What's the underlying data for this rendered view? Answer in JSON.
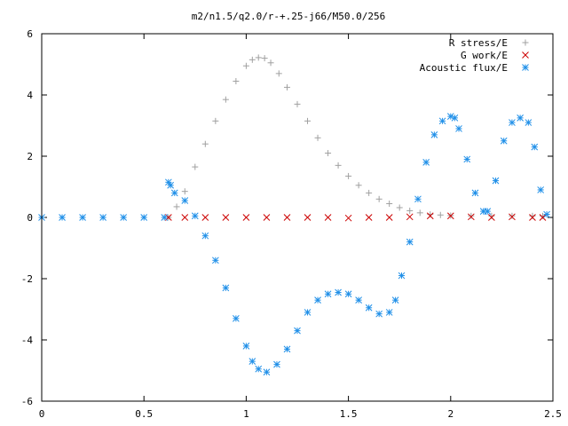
{
  "chart_data": {
    "type": "scatter",
    "title": "m2/n1.5/q2.0/r-+.25-j66/M50.0/256",
    "xlabel": "",
    "ylabel": "",
    "xlim": [
      0,
      2.5
    ],
    "ylim": [
      -6,
      6
    ],
    "grid": false,
    "legend_position": "top-right",
    "x_ticks": [
      "0",
      "0.5",
      "1",
      "1.5",
      "2",
      "2.5"
    ],
    "y_ticks": [
      "6",
      "4",
      "2",
      "0",
      "-2",
      "-4",
      "-6"
    ],
    "series": [
      {
        "name": "R stress/E",
        "marker": "+",
        "color": "#a0a0a0",
        "x": [
          0.62,
          0.66,
          0.7,
          0.75,
          0.8,
          0.85,
          0.9,
          0.95,
          1.0,
          1.03,
          1.06,
          1.09,
          1.12,
          1.16,
          1.2,
          1.25,
          1.3,
          1.35,
          1.4,
          1.45,
          1.5,
          1.55,
          1.6,
          1.65,
          1.7,
          1.75,
          1.8,
          1.85,
          1.9,
          1.95,
          2.0,
          2.1,
          2.2,
          2.3,
          2.4,
          2.45
        ],
        "y": [
          0.0,
          0.35,
          0.85,
          1.65,
          2.4,
          3.15,
          3.85,
          4.45,
          4.95,
          5.15,
          5.22,
          5.2,
          5.05,
          4.7,
          4.25,
          3.7,
          3.15,
          2.6,
          2.1,
          1.7,
          1.35,
          1.05,
          0.8,
          0.6,
          0.45,
          0.32,
          0.22,
          0.15,
          0.1,
          0.08,
          0.06,
          0.05,
          0.05,
          0.05,
          0.05,
          0.05
        ]
      },
      {
        "name": "G work/E",
        "marker": "x",
        "color": "#cc0000",
        "x": [
          0.62,
          0.7,
          0.8,
          0.9,
          1.0,
          1.1,
          1.2,
          1.3,
          1.4,
          1.5,
          1.6,
          1.7,
          1.8,
          1.9,
          2.0,
          2.1,
          2.2,
          2.3,
          2.4,
          2.45
        ],
        "y": [
          0.0,
          0.0,
          0.0,
          0.0,
          0.0,
          0.0,
          0.0,
          0.0,
          0.0,
          -0.02,
          0.0,
          0.0,
          0.02,
          0.05,
          0.05,
          0.02,
          0.0,
          0.02,
          0.0,
          0.0
        ]
      },
      {
        "name": "Acoustic flux/E",
        "marker": "*",
        "color": "#1f8fe8",
        "x": [
          0.0,
          0.1,
          0.2,
          0.3,
          0.4,
          0.5,
          0.6,
          0.62,
          0.63,
          0.65,
          0.7,
          0.75,
          0.8,
          0.85,
          0.9,
          0.95,
          1.0,
          1.03,
          1.06,
          1.1,
          1.15,
          1.2,
          1.25,
          1.3,
          1.35,
          1.4,
          1.45,
          1.5,
          1.55,
          1.6,
          1.65,
          1.7,
          1.73,
          1.76,
          1.8,
          1.84,
          1.88,
          1.92,
          1.96,
          2.0,
          2.02,
          2.04,
          2.08,
          2.12,
          2.16,
          2.18,
          2.22,
          2.26,
          2.3,
          2.34,
          2.38,
          2.41,
          2.44,
          2.47
        ],
        "y": [
          0.0,
          0.0,
          0.0,
          0.0,
          0.0,
          0.0,
          0.0,
          1.15,
          1.05,
          0.8,
          0.55,
          0.05,
          -0.6,
          -1.4,
          -2.3,
          -3.3,
          -4.2,
          -4.7,
          -4.95,
          -5.05,
          -4.8,
          -4.3,
          -3.7,
          -3.1,
          -2.7,
          -2.5,
          -2.45,
          -2.5,
          -2.7,
          -2.95,
          -3.15,
          -3.1,
          -2.7,
          -1.9,
          -0.8,
          0.6,
          1.8,
          2.7,
          3.15,
          3.3,
          3.25,
          2.9,
          1.9,
          0.8,
          0.2,
          0.2,
          1.2,
          2.5,
          3.1,
          3.25,
          3.1,
          2.3,
          0.9,
          0.1
        ]
      }
    ]
  }
}
